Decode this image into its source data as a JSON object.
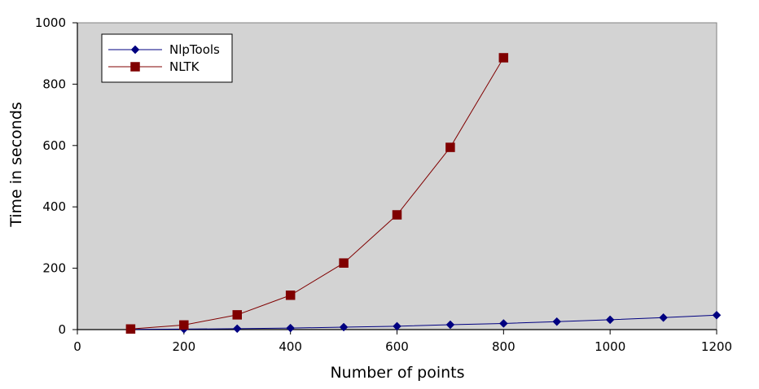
{
  "chart_data": {
    "type": "line",
    "title": "",
    "xlabel": "Number of points",
    "ylabel": "Time in seconds",
    "xlim": [
      0,
      1200
    ],
    "ylim": [
      0,
      1000
    ],
    "x_ticks": [
      "0",
      "200",
      "400",
      "600",
      "800",
      "1000",
      "1200"
    ],
    "y_ticks": [
      "0",
      "200",
      "400",
      "600",
      "800",
      "1000"
    ],
    "grid": false,
    "legend_position": "top-left",
    "plot_background": "#d3d3d3",
    "series": [
      {
        "name": "NlpTools",
        "color": "#000080",
        "marker": "diamond",
        "x": [
          100,
          200,
          300,
          400,
          500,
          600,
          700,
          800,
          900,
          1000,
          1100,
          1200
        ],
        "y": [
          0.5,
          1.5,
          3,
          5,
          8,
          11,
          16,
          20,
          26,
          32,
          39,
          47
        ]
      },
      {
        "name": "NLTK",
        "color": "#800000",
        "marker": "square",
        "x": [
          100,
          200,
          300,
          400,
          500,
          600,
          700,
          800
        ],
        "y": [
          2,
          15,
          48,
          112,
          217,
          374,
          594,
          886
        ]
      }
    ]
  }
}
